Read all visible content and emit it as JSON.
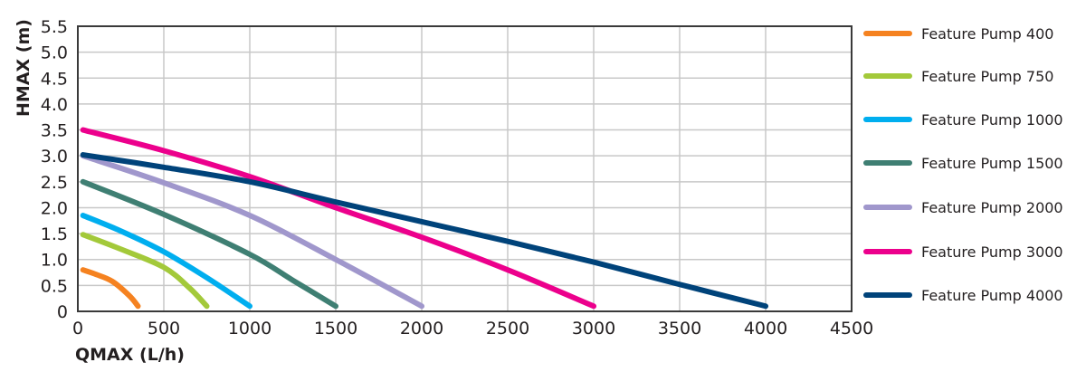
{
  "chart_data": {
    "type": "line",
    "title": "",
    "xlabel": "QMAX (L/h)",
    "ylabel": "HMAX (m)",
    "xlim": [
      0,
      4500
    ],
    "ylim": [
      0,
      5.5
    ],
    "x_ticks": [
      0,
      500,
      1000,
      1500,
      2000,
      2500,
      3000,
      3500,
      4000,
      4500
    ],
    "y_ticks": [
      "0",
      "0.5",
      "1.0",
      "1.5",
      "2.0",
      "2.5",
      "3.0",
      "3.5",
      "4.0",
      "4.5",
      "5.0",
      "5.5"
    ],
    "grid": true,
    "legend_position": "right",
    "series": [
      {
        "name": "Feature Pump 400",
        "color": "#F58220",
        "points": [
          [
            30,
            0.8
          ],
          [
            100,
            0.72
          ],
          [
            200,
            0.58
          ],
          [
            300,
            0.3
          ],
          [
            350,
            0.1
          ]
        ]
      },
      {
        "name": "Feature Pump 750",
        "color": "#A3C93A",
        "points": [
          [
            30,
            1.48
          ],
          [
            250,
            1.2
          ],
          [
            500,
            0.85
          ],
          [
            650,
            0.45
          ],
          [
            750,
            0.1
          ]
        ]
      },
      {
        "name": "Feature Pump 1000",
        "color": "#00AEEF",
        "points": [
          [
            30,
            1.85
          ],
          [
            250,
            1.55
          ],
          [
            500,
            1.15
          ],
          [
            750,
            0.65
          ],
          [
            1000,
            0.1
          ]
        ]
      },
      {
        "name": "Feature Pump 1500",
        "color": "#3F7F73",
        "points": [
          [
            30,
            2.5
          ],
          [
            500,
            1.87
          ],
          [
            1000,
            1.1
          ],
          [
            1250,
            0.6
          ],
          [
            1500,
            0.1
          ]
        ]
      },
      {
        "name": "Feature Pump 2000",
        "color": "#A097CC",
        "points": [
          [
            30,
            3.0
          ],
          [
            500,
            2.48
          ],
          [
            1000,
            1.85
          ],
          [
            1500,
            1.0
          ],
          [
            2000,
            0.1
          ]
        ]
      },
      {
        "name": "Feature Pump 3000",
        "color": "#EC008C",
        "points": [
          [
            30,
            3.5
          ],
          [
            500,
            3.1
          ],
          [
            1000,
            2.6
          ],
          [
            1500,
            2.0
          ],
          [
            2000,
            1.43
          ],
          [
            2500,
            0.8
          ],
          [
            3000,
            0.1
          ]
        ]
      },
      {
        "name": "Feature Pump 4000",
        "color": "#00437A",
        "points": [
          [
            30,
            3.02
          ],
          [
            500,
            2.78
          ],
          [
            1000,
            2.5
          ],
          [
            1500,
            2.11
          ],
          [
            2000,
            1.73
          ],
          [
            2500,
            1.35
          ],
          [
            3000,
            0.95
          ],
          [
            3500,
            0.52
          ],
          [
            4000,
            0.1
          ]
        ]
      }
    ]
  },
  "axes": {
    "xlabel": "QMAX (L/h)",
    "ylabel": "HMAX (m)"
  }
}
